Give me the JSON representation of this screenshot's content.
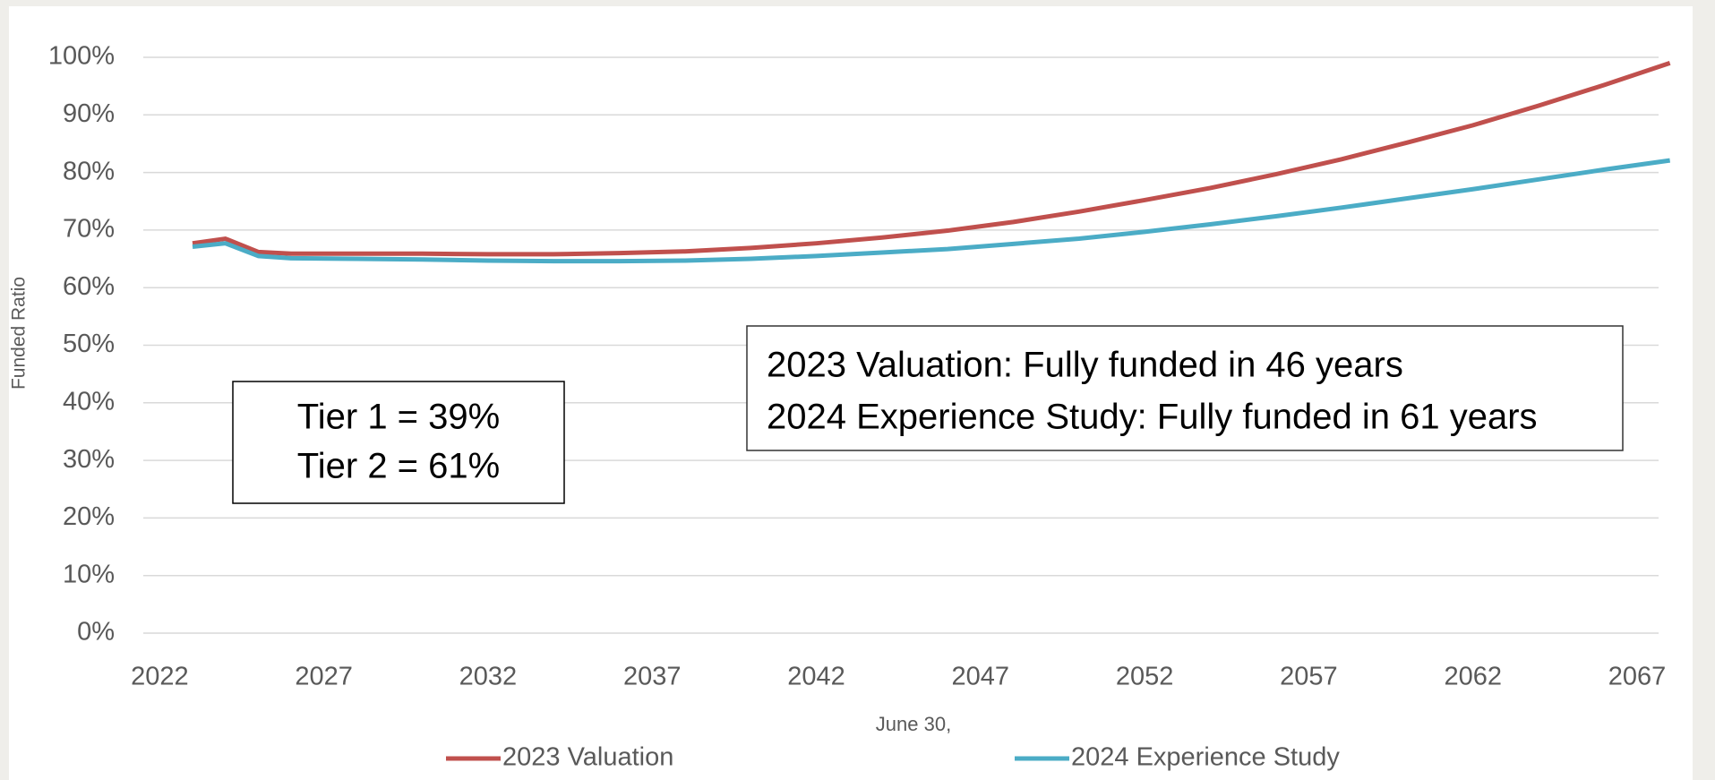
{
  "chart_data": {
    "type": "line",
    "y_label": "Funded Ratio",
    "x_label": "June 30,",
    "x": [
      2023,
      2024,
      2025,
      2026,
      2028,
      2030,
      2032,
      2034,
      2036,
      2038,
      2040,
      2042,
      2044,
      2046,
      2048,
      2050,
      2052,
      2054,
      2056,
      2058,
      2060,
      2062,
      2064,
      2066,
      2068
    ],
    "series": [
      {
        "name": "2023 Valuation",
        "color": "#c0504d",
        "values": [
          67.7,
          68.5,
          66.2,
          65.9,
          65.9,
          65.9,
          65.8,
          65.8,
          66.0,
          66.3,
          66.9,
          67.7,
          68.7,
          69.9,
          71.4,
          73.2,
          75.2,
          77.3,
          79.7,
          82.3,
          85.2,
          88.2,
          91.6,
          95.2,
          99.0
        ]
      },
      {
        "name": "2024 Experience Study",
        "color": "#4bacc6",
        "values": [
          67.1,
          67.7,
          65.5,
          65.1,
          65.0,
          64.9,
          64.7,
          64.6,
          64.6,
          64.7,
          65.0,
          65.5,
          66.1,
          66.7,
          67.6,
          68.5,
          69.7,
          71.0,
          72.4,
          73.9,
          75.5,
          77.1,
          78.8,
          80.5,
          82.1
        ]
      }
    ],
    "xlim": [
      2021.5,
      2068.5
    ],
    "xticks": [
      2022,
      2027,
      2032,
      2037,
      2042,
      2047,
      2052,
      2057,
      2062,
      2067
    ],
    "ylim": [
      0,
      100
    ],
    "yticks": [
      {
        "value": 0,
        "label": "0%"
      },
      {
        "value": 10,
        "label": "10%"
      },
      {
        "value": 20,
        "label": "20%"
      },
      {
        "value": 30,
        "label": "30%"
      },
      {
        "value": 40,
        "label": "40%"
      },
      {
        "value": 50,
        "label": "50%"
      },
      {
        "value": 60,
        "label": "60%"
      },
      {
        "value": 70,
        "label": "70%"
      },
      {
        "value": 80,
        "label": "80%"
      },
      {
        "value": 90,
        "label": "90%"
      },
      {
        "value": 100,
        "label": "100%"
      }
    ],
    "grid": true,
    "legend": "bottom",
    "annotations": [
      [
        "Tier 1 = 39%",
        "Tier 2 = 61%"
      ],
      [
        "2023 Valuation: Fully funded in 46 years",
        "2024 Experience Study: Fully funded in 61 years"
      ]
    ]
  }
}
